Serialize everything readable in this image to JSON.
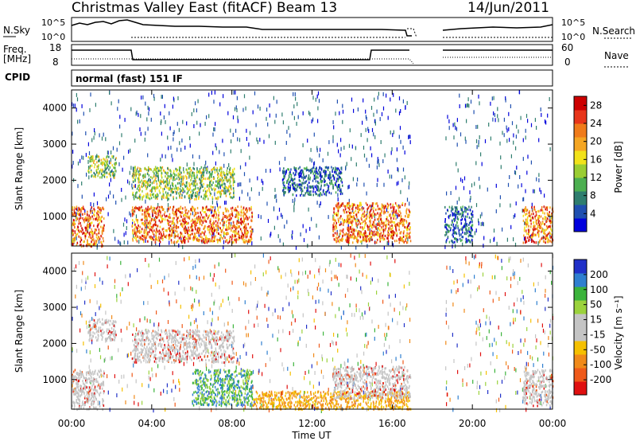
{
  "header": {
    "site_title": "Christmas Valley East (fitACF)",
    "beam": "Beam 13",
    "date": "14/Jun/2011"
  },
  "strip_labels": {
    "nsky": "N.Sky",
    "nsky_ticks": [
      "10^5",
      "10^0"
    ],
    "nsearch": "N.Search",
    "nsearch_ticks": [
      "10^5",
      "10^0"
    ],
    "freq_line1": "Freq.",
    "freq_line2": "[MHz]",
    "freq_ticks": [
      "18",
      "8"
    ],
    "nave": "Nave",
    "nave_ticks": [
      "60",
      "0"
    ],
    "cpid": "CPID",
    "mode": "normal (fast) 151 IF"
  },
  "colors": {
    "power_scale": [
      "#0000dd",
      "#1f4fb0",
      "#2e7d6e",
      "#4caf50",
      "#9acd32",
      "#f2e21a",
      "#f5a623",
      "#f07b1a",
      "#e8351a",
      "#cc0000"
    ],
    "velocity_scale": [
      "#2030c8",
      "#2f7fd0",
      "#3bb33b",
      "#9bd23c",
      "#c4c4c4",
      "#c4c4c4",
      "#f5c000",
      "#f08a1a",
      "#ef5a1a",
      "#e01010"
    ]
  },
  "chart_data": [
    {
      "type": "heatmap",
      "name": "power",
      "xlabel": "Time UT",
      "ylabel": "Slant Range [km]",
      "x_ticks": [
        "00:00",
        "04:00",
        "08:00",
        "12:00",
        "16:00",
        "20:00",
        "00:00"
      ],
      "y_ticks": [
        "1000",
        "2000",
        "3000",
        "4000"
      ],
      "xlim": [
        0,
        24
      ],
      "ylim": [
        180,
        4500
      ],
      "colorbar_label": "Power [dB]",
      "colorbar_ticks": [
        "4",
        "8",
        "12",
        "16",
        "20",
        "24",
        "28"
      ],
      "colorbar_range": [
        0,
        30
      ],
      "data_gap_hours": [
        16.9,
        18.6
      ],
      "echo_regions": [
        {
          "t_start": 0.0,
          "t_end": 1.6,
          "r_start": 200,
          "r_end": 1300,
          "level": "high"
        },
        {
          "t_start": 0.8,
          "t_end": 2.2,
          "r_start": 2100,
          "r_end": 2700,
          "level": "medium"
        },
        {
          "t_start": 3.0,
          "t_end": 8.1,
          "r_start": 1500,
          "r_end": 2400,
          "level": "medium"
        },
        {
          "t_start": 3.0,
          "t_end": 9.0,
          "r_start": 300,
          "r_end": 1300,
          "level": "high"
        },
        {
          "t_start": 10.5,
          "t_end": 13.5,
          "r_start": 1600,
          "r_end": 2400,
          "level": "low"
        },
        {
          "t_start": 13.0,
          "t_end": 16.9,
          "r_start": 300,
          "r_end": 1400,
          "level": "high"
        },
        {
          "t_start": 18.6,
          "t_end": 20.0,
          "r_start": 300,
          "r_end": 1300,
          "level": "low"
        },
        {
          "t_start": 22.5,
          "t_end": 24.0,
          "r_start": 300,
          "r_end": 1300,
          "level": "high"
        }
      ]
    },
    {
      "type": "heatmap",
      "name": "velocity",
      "xlabel": "Time UT",
      "ylabel": "Slant Range [km]",
      "x_ticks": [
        "00:00",
        "04:00",
        "08:00",
        "12:00",
        "16:00",
        "20:00",
        "00:00"
      ],
      "y_ticks": [
        "1000",
        "2000",
        "3000",
        "4000"
      ],
      "xlim": [
        0,
        24
      ],
      "ylim": [
        180,
        4500
      ],
      "colorbar_label": "Velocity [m s⁻¹]",
      "colorbar_ticks": [
        "200",
        "100",
        "50",
        "15",
        "-15",
        "-50",
        "-100",
        "-200"
      ],
      "colorbar_range": [
        -250,
        250
      ],
      "data_gap_hours": [
        16.9,
        18.6
      ],
      "echo_regions": [
        {
          "t_start": 0.0,
          "t_end": 1.6,
          "r_start": 200,
          "r_end": 1300,
          "level": "near-zero"
        },
        {
          "t_start": 0.8,
          "t_end": 2.2,
          "r_start": 2100,
          "r_end": 2700,
          "level": "near-zero"
        },
        {
          "t_start": 3.0,
          "t_end": 8.1,
          "r_start": 1500,
          "r_end": 2400,
          "level": "near-zero"
        },
        {
          "t_start": 6.0,
          "t_end": 9.0,
          "r_start": 300,
          "r_end": 1300,
          "level": "positive"
        },
        {
          "t_start": 9.0,
          "t_end": 16.9,
          "r_start": 200,
          "r_end": 700,
          "level": "negative"
        },
        {
          "t_start": 13.0,
          "t_end": 16.9,
          "r_start": 500,
          "r_end": 1400,
          "level": "near-zero"
        },
        {
          "t_start": 22.5,
          "t_end": 24.0,
          "r_start": 300,
          "r_end": 1300,
          "level": "near-zero"
        }
      ]
    }
  ]
}
